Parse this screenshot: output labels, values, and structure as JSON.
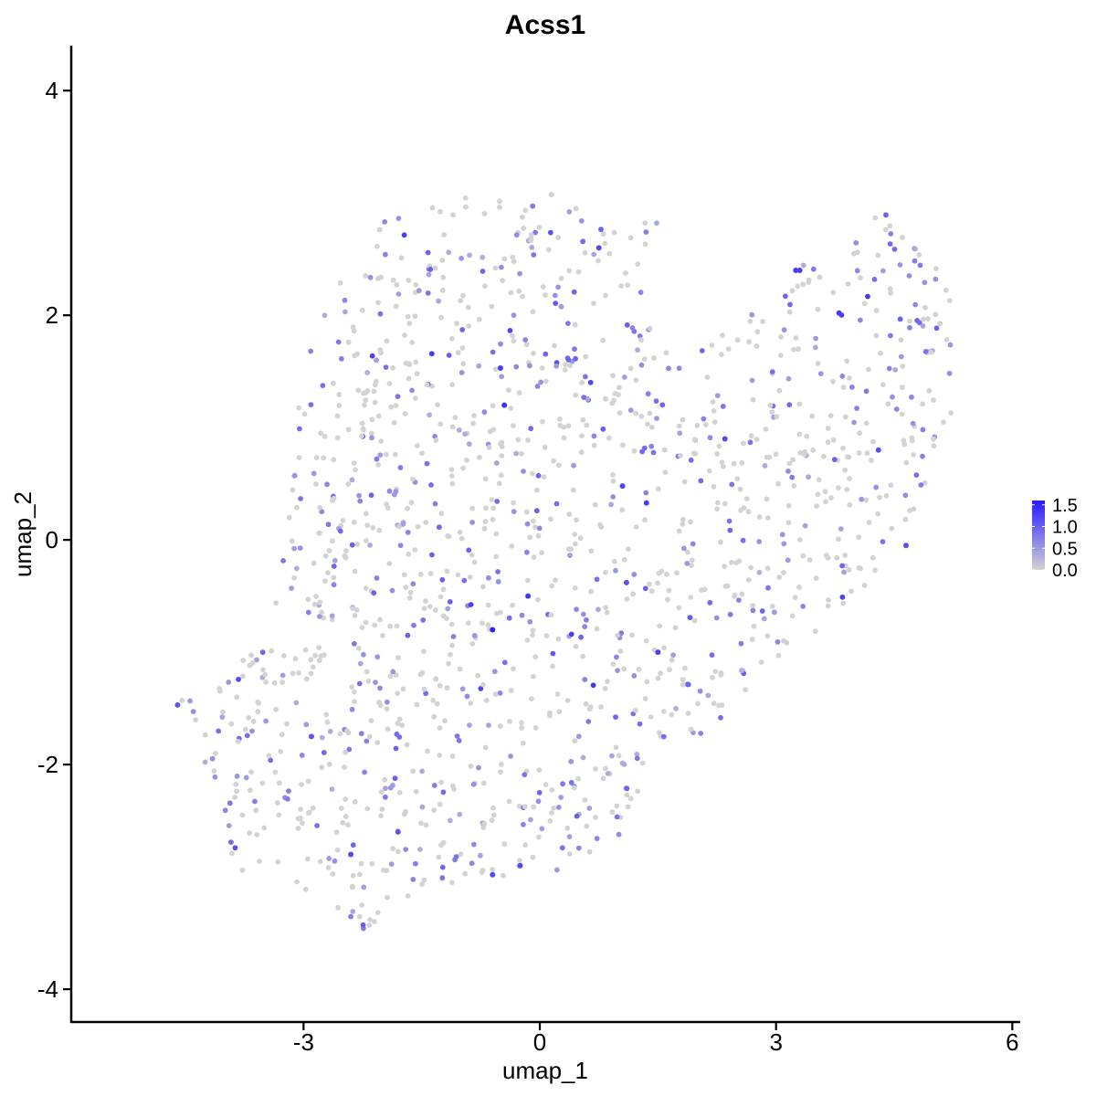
{
  "chart_data": {
    "type": "scatter",
    "title": "Acss1",
    "xlabel": "umap_1",
    "ylabel": "umap_2",
    "xlim": [
      -5.95,
      6.1
    ],
    "ylim": [
      -4.3,
      4.4
    ],
    "xticks": [
      -3,
      0,
      3,
      6
    ],
    "yticks": [
      -4,
      -2,
      0,
      2,
      4
    ],
    "xtick_labels": [
      "-3",
      "0",
      "3",
      "6"
    ],
    "ytick_labels": [
      "-4",
      "-2",
      "0",
      "2",
      "4"
    ],
    "grid": false,
    "legend": {
      "placement": "right",
      "type": "continuous colorbar",
      "range": [
        0,
        1.6
      ],
      "ticks": [
        0,
        0.5,
        1.0,
        1.5
      ],
      "tick_labels": [
        "0.0",
        "0.5",
        "1.0",
        "1.5"
      ],
      "low_color": "#d3d3d3",
      "high_color": "#2a1aff"
    },
    "n_points": 1450,
    "points_note": "Cells scattered over a region spanning umap_1 ≈ -4.7 to 5.4 and umap_2 ≈ -3.5 to 3.1; most cells at 0 (grey), roughly a third expressing at 0.3-1.0 (light purple), a handful near 1.4-1.6 (blue).",
    "highlight_points": [
      {
        "x": -4.6,
        "y": -1.47,
        "value": 1.1
      },
      {
        "x": -0.5,
        "y": 1.53,
        "value": 1.3
      },
      {
        "x": -0.45,
        "y": 1.2,
        "value": 1.4
      },
      {
        "x": -0.6,
        "y": -0.8,
        "value": 1.55
      },
      {
        "x": -0.15,
        "y": -0.5,
        "value": 1.35
      },
      {
        "x": 3.25,
        "y": 2.4,
        "value": 1.3
      },
      {
        "x": 3.3,
        "y": 2.4,
        "value": 1.3
      },
      {
        "x": 3.8,
        "y": 2.02,
        "value": 1.3
      },
      {
        "x": 2.35,
        "y": 0.9,
        "value": 1.2
      },
      {
        "x": 1.05,
        "y": 0.48,
        "value": 1.25
      },
      {
        "x": 1.5,
        "y": -1.0,
        "value": 1.3
      },
      {
        "x": -0.25,
        "y": -2.9,
        "value": 1.2
      },
      {
        "x": -2.4,
        "y": -2.8,
        "value": 1.2
      },
      {
        "x": 0.75,
        "y": 2.6,
        "value": 1.2
      },
      {
        "x": 4.65,
        "y": -0.05,
        "value": 1.15
      },
      {
        "x": -0.6,
        "y": -2.98,
        "value": 1.2
      },
      {
        "x": -1.8,
        "y": -2.6,
        "value": 1.1
      },
      {
        "x": 4.3,
        "y": 0.8,
        "value": 1.15
      },
      {
        "x": -2.9,
        "y": -1.75,
        "value": 1.1
      },
      {
        "x": 1.1,
        "y": -0.38,
        "value": 1.15
      }
    ],
    "color_low": "#d3d3d3",
    "color_high": "#2a1aff"
  }
}
